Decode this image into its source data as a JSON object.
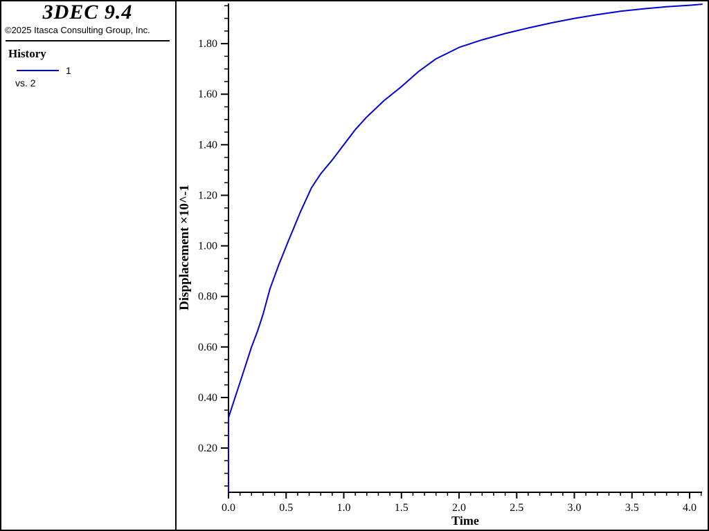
{
  "window": {
    "app_title": "3DEC 9.4",
    "copyright": "©2025 Itasca Consulting Group, Inc."
  },
  "legend": {
    "section_title": "History",
    "series_label": "1",
    "vs_label": "vs. 2"
  },
  "colors": {
    "series_blue": "#0000d8",
    "axis": "#000000",
    "text": "#000000",
    "background": "#ffffff"
  },
  "chart_data": {
    "type": "line",
    "title": "",
    "xlabel": "Time",
    "ylabel": "Dispplacement ×10^-1",
    "xlim": [
      0,
      4.108
    ],
    "ylim": [
      0.025,
      1.959
    ],
    "grid": false,
    "legend_position": "sidebar-top-left",
    "x_ticks": {
      "values": [
        0.0,
        0.5,
        1.0,
        1.5,
        2.0,
        2.5,
        3.0,
        3.5,
        4.0
      ],
      "labels": [
        "0.0",
        "0.5",
        "1.0",
        "1.5",
        "2.0",
        "2.5",
        "3.0",
        "3.5",
        "4.0"
      ],
      "minor_step": 0.1
    },
    "y_ticks": {
      "values": [
        0.2,
        0.4,
        0.6,
        0.8,
        1.0,
        1.2,
        1.4,
        1.6,
        1.8
      ],
      "labels": [
        "0.20",
        "0.40",
        "0.60",
        "0.80",
        "1.00",
        "1.20",
        "1.40",
        "1.60",
        "1.80"
      ],
      "minor_step": 0.05
    },
    "series": [
      {
        "name": "1 vs. 2",
        "color": "#0000d8",
        "points": [
          [
            0.0,
            0.025
          ],
          [
            0.0,
            0.32
          ],
          [
            0.05,
            0.39
          ],
          [
            0.1,
            0.46
          ],
          [
            0.15,
            0.53
          ],
          [
            0.2,
            0.6
          ],
          [
            0.25,
            0.66
          ],
          [
            0.3,
            0.73
          ],
          [
            0.36,
            0.83
          ],
          [
            0.44,
            0.93
          ],
          [
            0.52,
            1.02
          ],
          [
            0.62,
            1.13
          ],
          [
            0.72,
            1.23
          ],
          [
            0.8,
            1.285
          ],
          [
            0.9,
            1.34
          ],
          [
            1.0,
            1.4
          ],
          [
            1.1,
            1.46
          ],
          [
            1.2,
            1.51
          ],
          [
            1.35,
            1.575
          ],
          [
            1.5,
            1.63
          ],
          [
            1.65,
            1.69
          ],
          [
            1.8,
            1.74
          ],
          [
            2.0,
            1.785
          ],
          [
            2.2,
            1.815
          ],
          [
            2.4,
            1.84
          ],
          [
            2.6,
            1.862
          ],
          [
            2.8,
            1.882
          ],
          [
            3.0,
            1.9
          ],
          [
            3.2,
            1.915
          ],
          [
            3.4,
            1.928
          ],
          [
            3.6,
            1.938
          ],
          [
            3.8,
            1.946
          ],
          [
            4.0,
            1.952
          ],
          [
            4.108,
            1.956
          ]
        ]
      }
    ]
  }
}
